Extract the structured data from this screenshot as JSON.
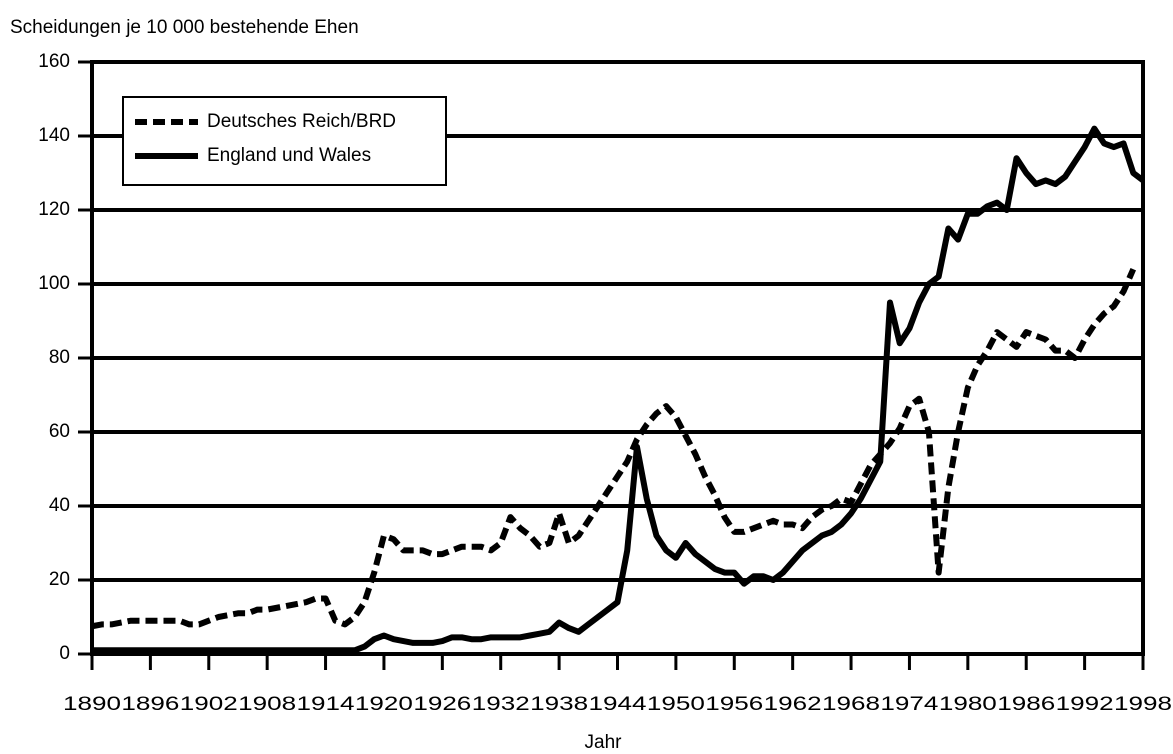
{
  "chart_data": {
    "type": "line",
    "title": "Scheidungen je 10 000 bestehende Ehen",
    "x_label": "Jahr",
    "x": [
      1890,
      1891,
      1892,
      1893,
      1894,
      1895,
      1896,
      1897,
      1898,
      1899,
      1900,
      1901,
      1902,
      1903,
      1904,
      1905,
      1906,
      1907,
      1908,
      1909,
      1910,
      1911,
      1912,
      1913,
      1914,
      1915,
      1916,
      1917,
      1918,
      1919,
      1920,
      1921,
      1922,
      1923,
      1924,
      1925,
      1926,
      1927,
      1928,
      1929,
      1930,
      1931,
      1932,
      1933,
      1934,
      1935,
      1936,
      1937,
      1938,
      1939,
      1940,
      1941,
      1942,
      1943,
      1944,
      1945,
      1946,
      1947,
      1948,
      1949,
      1950,
      1951,
      1952,
      1953,
      1954,
      1955,
      1956,
      1957,
      1958,
      1959,
      1960,
      1961,
      1962,
      1963,
      1964,
      1965,
      1966,
      1967,
      1968,
      1969,
      1970,
      1971,
      1972,
      1973,
      1974,
      1975,
      1976,
      1977,
      1978,
      1979,
      1980,
      1981,
      1982,
      1983,
      1984,
      1985,
      1986,
      1987,
      1988,
      1989,
      1990,
      1991,
      1992,
      1993,
      1994,
      1995,
      1996,
      1997,
      1998
    ],
    "series": [
      {
        "name": "Deutsches Reich/BRD",
        "color": "#000000",
        "dash": true,
        "values": [
          7.5,
          8,
          8,
          8.5,
          9,
          9,
          9,
          9,
          9,
          9,
          8,
          8,
          9,
          10,
          10.5,
          11,
          11,
          12,
          12,
          12.5,
          13,
          13.5,
          14,
          15,
          15,
          9,
          8,
          10,
          14,
          22,
          32,
          31,
          28,
          28,
          28,
          27,
          27,
          28,
          29,
          29,
          29,
          28,
          30,
          37,
          34,
          32,
          29,
          30,
          38,
          30,
          32,
          36,
          40,
          44,
          48,
          52,
          58,
          62,
          65,
          67,
          64,
          59,
          54,
          48,
          43,
          37,
          33,
          33,
          34,
          35,
          36,
          35,
          35,
          34,
          37,
          39,
          40,
          42,
          41,
          46,
          51,
          54,
          57,
          61,
          67,
          69,
          60,
          22,
          45,
          60,
          72,
          78,
          82,
          87,
          85,
          83,
          87,
          86,
          85,
          82,
          82,
          80,
          85,
          89,
          92,
          94,
          98,
          104,
          null
        ]
      },
      {
        "name": "England und Wales",
        "color": "#000000",
        "dash": false,
        "values": [
          1,
          1,
          1,
          1,
          1,
          1,
          1,
          1,
          1,
          1,
          1,
          1,
          1,
          1,
          1,
          1,
          1,
          1,
          1,
          1,
          1,
          1,
          1,
          1,
          1,
          1,
          1,
          1,
          2,
          4,
          5,
          4,
          3.5,
          3,
          3,
          3,
          3.5,
          4.5,
          4.5,
          4,
          4,
          4.5,
          4.5,
          4.5,
          4.5,
          5,
          5.5,
          6,
          8.5,
          7,
          6,
          8,
          10,
          12,
          14,
          28,
          56,
          42,
          32,
          28,
          26,
          30,
          27,
          25,
          23,
          22,
          22,
          19,
          21,
          21,
          20,
          22,
          25,
          28,
          30,
          32,
          33,
          35,
          38,
          42,
          47,
          52,
          95,
          84,
          88,
          95,
          100,
          102,
          115,
          112,
          119,
          119,
          121,
          122,
          120,
          134,
          130,
          127,
          128,
          127,
          129,
          133,
          137,
          142,
          138,
          137,
          138,
          130,
          128
        ]
      }
    ],
    "xlim": [
      1890,
      1998
    ],
    "xticks": [
      1890,
      1896,
      1902,
      1908,
      1914,
      1920,
      1926,
      1932,
      1938,
      1944,
      1950,
      1956,
      1962,
      1968,
      1974,
      1980,
      1986,
      1992,
      1998
    ],
    "ylim": [
      0,
      160
    ],
    "yticks": [
      0,
      20,
      40,
      60,
      80,
      100,
      120,
      140,
      160
    ],
    "grid": true,
    "legend": "upper left"
  }
}
